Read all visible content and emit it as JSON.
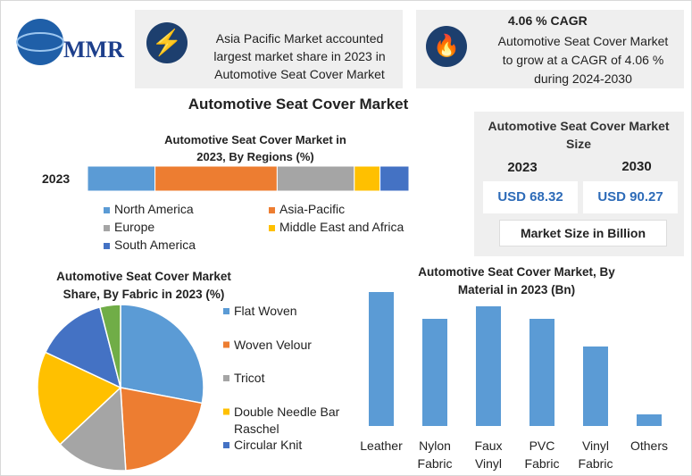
{
  "header": {
    "logo": "MMR",
    "box1": "Asia Pacific Market accounted largest market share in 2023 in Automotive Seat Cover Market",
    "box2_title": "4.06 % CAGR",
    "box2": "Automotive Seat Cover Market to grow at a CAGR of 4.06 % during 2024-2030"
  },
  "title": "Automotive Seat Cover Market",
  "market_size": {
    "title": "Automotive Seat Cover Market Size",
    "years": [
      "2023",
      "2030"
    ],
    "values": [
      "USD 68.32",
      "USD 90.27"
    ],
    "note": "Market Size in Billion"
  },
  "chart_data": [
    {
      "type": "stacked_bar",
      "title": "Automotive Seat Cover Market in 2023, By Regions (%)",
      "categories": [
        "2023"
      ],
      "series": [
        {
          "name": "North America",
          "color": "#5b9bd5",
          "values": [
            21
          ]
        },
        {
          "name": "Asia-Pacific",
          "color": "#ed7d31",
          "values": [
            38
          ]
        },
        {
          "name": "Europe",
          "color": "#a5a5a5",
          "values": [
            24
          ]
        },
        {
          "name": "Middle East and Africa",
          "color": "#ffc000",
          "values": [
            8
          ]
        },
        {
          "name": "South America",
          "color": "#4472c4",
          "values": [
            9
          ]
        }
      ]
    },
    {
      "type": "pie",
      "title": "Automotive Seat Cover Market Share, By Fabric in 2023  (%)",
      "categories": [
        "Flat Woven",
        "Woven Velour",
        "Tricot",
        "Double Needle Bar Raschel",
        "Circular Knit",
        null
      ],
      "values": [
        28,
        21,
        14,
        19,
        14,
        4
      ],
      "colors": [
        "#5b9bd5",
        "#ed7d31",
        "#a5a5a5",
        "#ffc000",
        "#4472c4",
        "#70ad47"
      ]
    },
    {
      "type": "bar",
      "title": "Automotive Seat Cover Market, By Material in 2023 (Bn)",
      "categories": [
        "Leather",
        "Nylon Fabric",
        "Faux Vinyl",
        "PVC Fabric",
        "Vinyl Fabric",
        "Others"
      ],
      "values": [
        15,
        12,
        13.4,
        12,
        8.9,
        1.3
      ],
      "color": "#5b9bd5"
    }
  ]
}
